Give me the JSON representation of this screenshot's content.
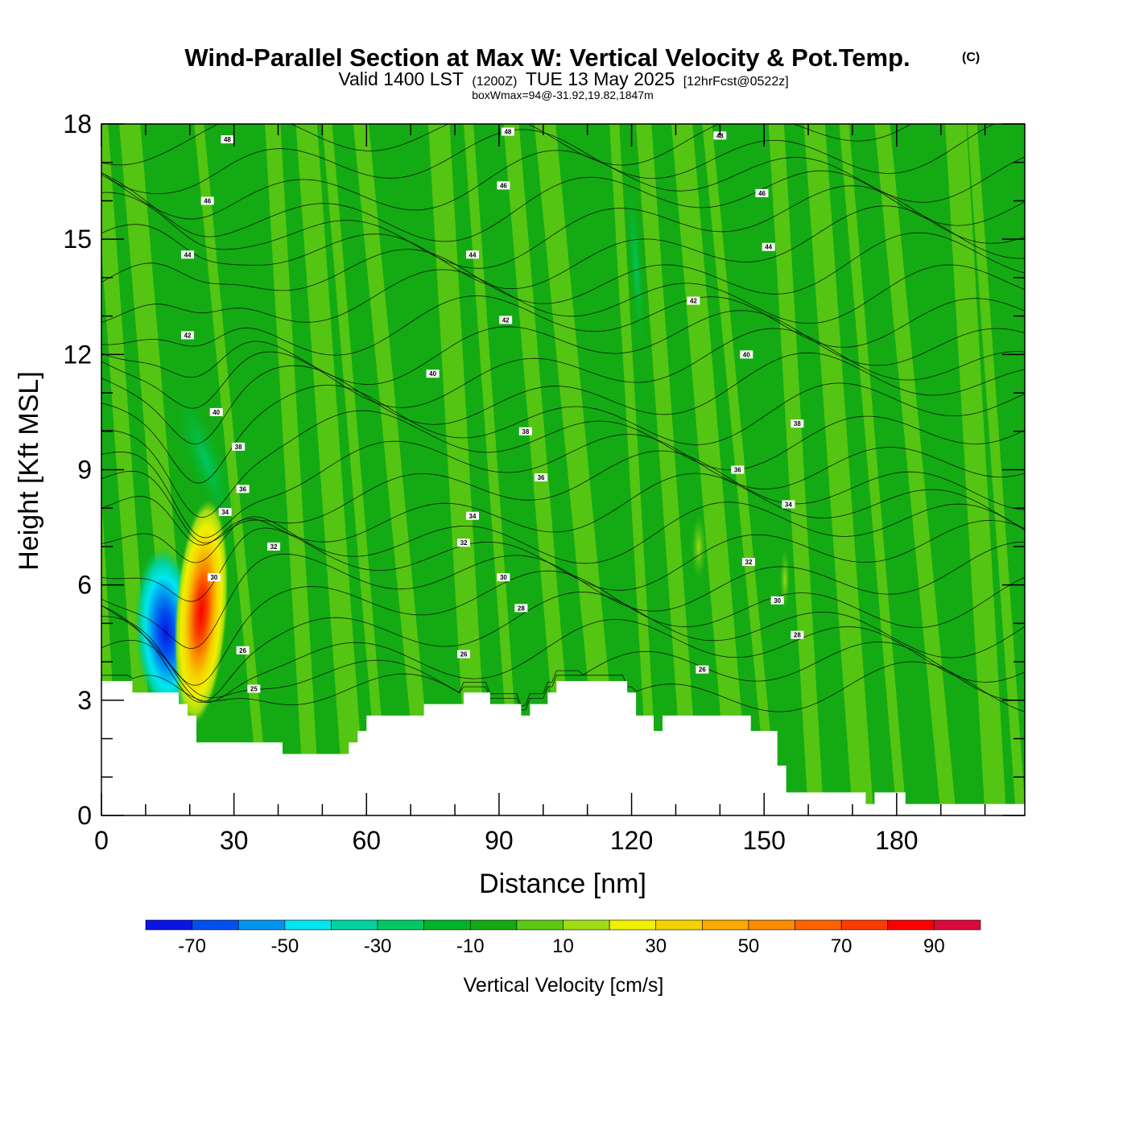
{
  "title": {
    "main": "Wind-Parallel Section at Max W: Vertical Velocity & Pot.Temp.",
    "copyright": "(C)",
    "valid_prefix": "Valid 1400 LST",
    "valid_utc": "(1200Z)",
    "valid_date": "TUE 13 May 2025",
    "forecast": "[12hrFcst@0522z]",
    "box_info": "boxWmax=94@-31.92,19.82,1847m"
  },
  "chart_data": {
    "type": "heatmap",
    "title": "Wind-Parallel Section at Max W: Vertical Velocity & Pot.Temp.",
    "xlabel": "Distance [nm]",
    "ylabel": "Height [Kft MSL]",
    "xlim": [
      0,
      209
    ],
    "ylim": [
      0,
      18
    ],
    "x_ticks": [
      0,
      30,
      60,
      90,
      120,
      150,
      180
    ],
    "y_ticks": [
      0,
      3,
      6,
      9,
      12,
      15,
      18
    ],
    "colorbar": {
      "title": "Vertical Velocity [cm/s]",
      "boundaries": [
        -80,
        -70,
        -60,
        -50,
        -40,
        -30,
        -20,
        -10,
        0,
        10,
        20,
        30,
        40,
        50,
        60,
        70,
        80,
        90,
        100
      ],
      "colors": [
        "#0a14e6",
        "#0050f0",
        "#0096f0",
        "#00e6f0",
        "#00d2a0",
        "#00c864",
        "#00b428",
        "#14aa14",
        "#5ac814",
        "#a0dc14",
        "#f0f000",
        "#f5d200",
        "#faaa00",
        "#fa8c00",
        "#fa6400",
        "#fa3c00",
        "#fa0000",
        "#dc0a3c"
      ],
      "labels": [
        "-70",
        "-50",
        "-30",
        "-10",
        "10",
        "30",
        "50",
        "70",
        "90"
      ],
      "label_values": [
        -70,
        -50,
        -30,
        -10,
        10,
        30,
        50,
        70,
        90
      ]
    },
    "max_w_cms": 94,
    "max_w_location": [
      -31.92,
      19.82
    ],
    "max_w_height_m": 1847,
    "terrain_kft": [
      [
        0,
        3.5
      ],
      [
        7,
        3.5
      ],
      [
        7,
        3.2
      ],
      [
        17.5,
        3.2
      ],
      [
        17.5,
        2.9
      ],
      [
        19.5,
        2.9
      ],
      [
        19.5,
        2.6
      ],
      [
        21.5,
        2.6
      ],
      [
        21.5,
        1.9
      ],
      [
        41,
        1.9
      ],
      [
        41,
        1.6
      ],
      [
        56,
        1.6
      ],
      [
        56,
        1.9
      ],
      [
        58,
        1.9
      ],
      [
        58,
        2.2
      ],
      [
        60,
        2.2
      ],
      [
        60,
        2.6
      ],
      [
        73,
        2.6
      ],
      [
        73,
        2.9
      ],
      [
        82,
        2.9
      ],
      [
        82,
        3.2
      ],
      [
        88,
        3.2
      ],
      [
        88,
        2.9
      ],
      [
        95,
        2.9
      ],
      [
        95,
        2.6
      ],
      [
        97,
        2.6
      ],
      [
        97,
        2.9
      ],
      [
        101,
        2.9
      ],
      [
        101,
        3.2
      ],
      [
        103,
        3.2
      ],
      [
        103,
        3.5
      ],
      [
        119,
        3.5
      ],
      [
        119,
        3.2
      ],
      [
        121,
        3.2
      ],
      [
        121,
        2.6
      ],
      [
        125,
        2.6
      ],
      [
        125,
        2.2
      ],
      [
        127,
        2.2
      ],
      [
        127,
        2.6
      ],
      [
        147,
        2.6
      ],
      [
        147,
        2.2
      ],
      [
        153,
        2.2
      ],
      [
        153,
        1.3
      ],
      [
        155,
        1.3
      ],
      [
        155,
        0.6
      ],
      [
        173,
        0.6
      ],
      [
        173,
        0.3
      ],
      [
        175,
        0.3
      ],
      [
        175,
        0.6
      ],
      [
        182,
        0.6
      ],
      [
        182,
        0.3
      ],
      [
        209,
        0.3
      ]
    ],
    "features": [
      {
        "name": "updraft",
        "x": 21.5,
        "y": 4.9,
        "w_cms": 94
      },
      {
        "name": "downdraft",
        "x": 14.5,
        "y": 4.9,
        "w_cms": -70
      }
    ],
    "isentrope_values": [
      24,
      25,
      26,
      27,
      28,
      29,
      30,
      31,
      32,
      33,
      34,
      35,
      36,
      37,
      38,
      39,
      40,
      41,
      42,
      43,
      44,
      45,
      46,
      47,
      48
    ],
    "contour_labels": [
      {
        "text": "48",
        "x": 28.5,
        "y": 17.6
      },
      {
        "text": "48",
        "x": 92,
        "y": 17.8
      },
      {
        "text": "48",
        "x": 140,
        "y": 17.7
      },
      {
        "text": "46",
        "x": 24,
        "y": 16.0
      },
      {
        "text": "46",
        "x": 91,
        "y": 16.4
      },
      {
        "text": "46",
        "x": 149.5,
        "y": 16.2
      },
      {
        "text": "44",
        "x": 19.5,
        "y": 14.6
      },
      {
        "text": "44",
        "x": 84,
        "y": 14.6
      },
      {
        "text": "44",
        "x": 151,
        "y": 14.8
      },
      {
        "text": "42",
        "x": 134,
        "y": 13.4
      },
      {
        "text": "42",
        "x": 91.5,
        "y": 12.9
      },
      {
        "text": "42",
        "x": 19.5,
        "y": 12.5
      },
      {
        "text": "40",
        "x": 75,
        "y": 11.5
      },
      {
        "text": "40",
        "x": 146,
        "y": 12.0
      },
      {
        "text": "40",
        "x": 26,
        "y": 10.5
      },
      {
        "text": "38",
        "x": 96,
        "y": 10.0
      },
      {
        "text": "38",
        "x": 157.5,
        "y": 10.2
      },
      {
        "text": "38",
        "x": 31,
        "y": 9.6
      },
      {
        "text": "36",
        "x": 99.5,
        "y": 8.8
      },
      {
        "text": "36",
        "x": 144,
        "y": 9.0
      },
      {
        "text": "36",
        "x": 32,
        "y": 8.5
      },
      {
        "text": "34",
        "x": 84,
        "y": 7.8
      },
      {
        "text": "34",
        "x": 155.5,
        "y": 8.1
      },
      {
        "text": "34",
        "x": 28,
        "y": 7.9
      },
      {
        "text": "32",
        "x": 39,
        "y": 7.0
      },
      {
        "text": "32",
        "x": 82,
        "y": 7.1
      },
      {
        "text": "32",
        "x": 146.5,
        "y": 6.6
      },
      {
        "text": "30",
        "x": 91,
        "y": 6.2
      },
      {
        "text": "30",
        "x": 153,
        "y": 5.6
      },
      {
        "text": "30",
        "x": 25.5,
        "y": 6.2
      },
      {
        "text": "28",
        "x": 95,
        "y": 5.4
      },
      {
        "text": "28",
        "x": 157.5,
        "y": 4.7
      },
      {
        "text": "26",
        "x": 82,
        "y": 4.2
      },
      {
        "text": "26",
        "x": 136,
        "y": 3.8
      },
      {
        "text": "26",
        "x": 32,
        "y": 4.3
      },
      {
        "text": "25",
        "x": 34.5,
        "y": 3.3
      }
    ]
  }
}
